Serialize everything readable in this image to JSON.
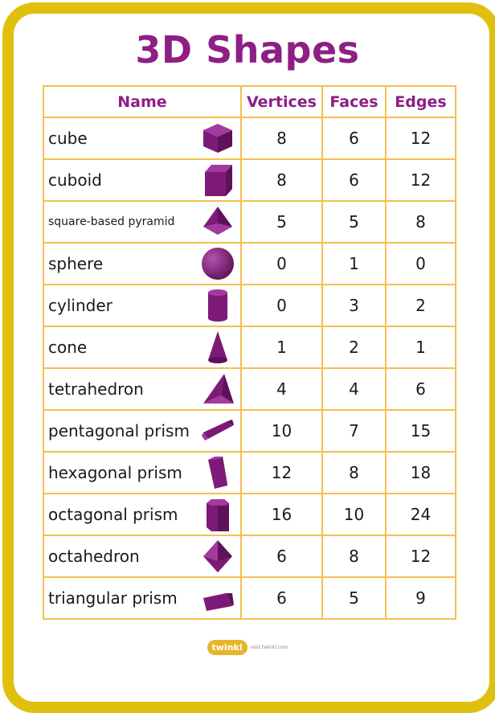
{
  "title": "3D Shapes",
  "headers": {
    "name": "Name",
    "vertices": "Vertices",
    "faces": "Faces",
    "edges": "Edges"
  },
  "rows": [
    {
      "name": "cube",
      "vertices": "8",
      "faces": "6",
      "edges": "12",
      "icon": "cube-icon"
    },
    {
      "name": "cuboid",
      "vertices": "8",
      "faces": "6",
      "edges": "12",
      "icon": "cuboid-icon"
    },
    {
      "name": "square-based pyramid",
      "vertices": "5",
      "faces": "5",
      "edges": "8",
      "icon": "pyramid-icon"
    },
    {
      "name": "sphere",
      "vertices": "0",
      "faces": "1",
      "edges": "0",
      "icon": "sphere-icon"
    },
    {
      "name": "cylinder",
      "vertices": "0",
      "faces": "3",
      "edges": "2",
      "icon": "cylinder-icon"
    },
    {
      "name": "cone",
      "vertices": "1",
      "faces": "2",
      "edges": "1",
      "icon": "cone-icon"
    },
    {
      "name": "tetrahedron",
      "vertices": "4",
      "faces": "4",
      "edges": "6",
      "icon": "tetrahedron-icon"
    },
    {
      "name": "pentagonal prism",
      "vertices": "10",
      "faces": "7",
      "edges": "15",
      "icon": "pentagonal-prism-icon"
    },
    {
      "name": "hexagonal prism",
      "vertices": "12",
      "faces": "8",
      "edges": "18",
      "icon": "hexagonal-prism-icon"
    },
    {
      "name": "octagonal prism",
      "vertices": "16",
      "faces": "10",
      "edges": "24",
      "icon": "octagonal-prism-icon"
    },
    {
      "name": "octahedron",
      "vertices": "6",
      "faces": "8",
      "edges": "12",
      "icon": "octahedron-icon"
    },
    {
      "name": "triangular prism",
      "vertices": "6",
      "faces": "5",
      "edges": "9",
      "icon": "triangular-prism-icon"
    }
  ],
  "footer": {
    "logo": "twinkl",
    "visit": "visit twinkl.com"
  },
  "colors": {
    "frame": "#e0c00e",
    "title": "#8d1f86",
    "grid": "#f2c14e",
    "shape": "#7d1a78"
  }
}
